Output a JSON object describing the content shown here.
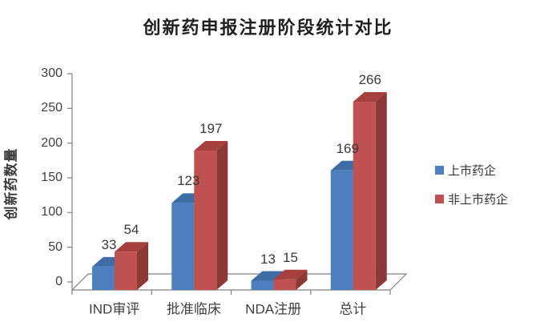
{
  "title": "创新药申报注册阶段统计对比",
  "chart_data": {
    "type": "bar",
    "style": "3d-clustered-column",
    "title": "创新药申报注册阶段统计对比",
    "xlabel": "",
    "ylabel": "创新药数量",
    "categories": [
      "IND审评",
      "批准临床",
      "NDA注册",
      "总计"
    ],
    "series": [
      {
        "name": "上市药企",
        "color": "#4D7EBD",
        "color_top": "#3D6CA6",
        "color_side": "#31537D",
        "values": [
          33,
          123,
          13,
          169
        ]
      },
      {
        "name": "非上市药企",
        "color": "#BF5250",
        "color_top": "#A6403E",
        "color_side": "#8C3836",
        "values": [
          54,
          197,
          15,
          266
        ]
      }
    ],
    "ylim": [
      0,
      300
    ],
    "yticks": [
      0,
      50,
      100,
      150,
      200,
      250,
      300
    ],
    "grid": false,
    "data_labels": true,
    "legend_position": "right",
    "axis_color": "#808080",
    "background": "#ffffff"
  }
}
